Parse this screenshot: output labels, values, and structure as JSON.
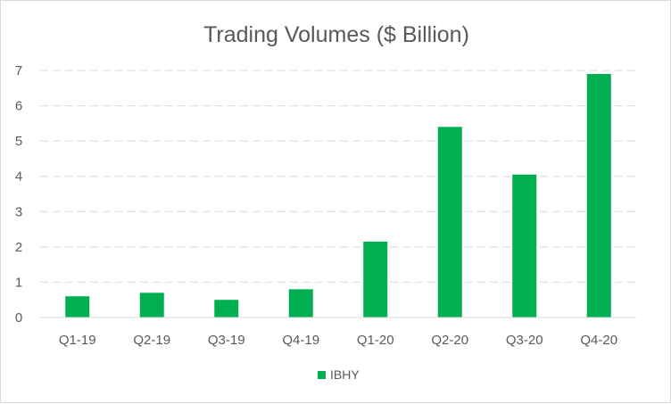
{
  "chart_data": {
    "type": "bar",
    "title": "Trading Volumes ($ Billion)",
    "xlabel": "",
    "ylabel": "",
    "categories": [
      "Q1-19",
      "Q2-19",
      "Q3-19",
      "Q4-19",
      "Q1-20",
      "Q2-20",
      "Q3-20",
      "Q4-20"
    ],
    "series": [
      {
        "name": "IBHY",
        "values": [
          0.6,
          0.7,
          0.5,
          0.8,
          2.15,
          5.4,
          4.05,
          6.9
        ]
      }
    ],
    "ylim": [
      0,
      7
    ],
    "yticks": [
      "0",
      "1",
      "2",
      "3",
      "4",
      "5",
      "6",
      "7"
    ],
    "grid": true,
    "legend_position": "bottom",
    "colors": {
      "bar": "#00b050",
      "grid": "#d9d9d9",
      "axis": "#d9d9d9",
      "text": "#595959"
    }
  }
}
